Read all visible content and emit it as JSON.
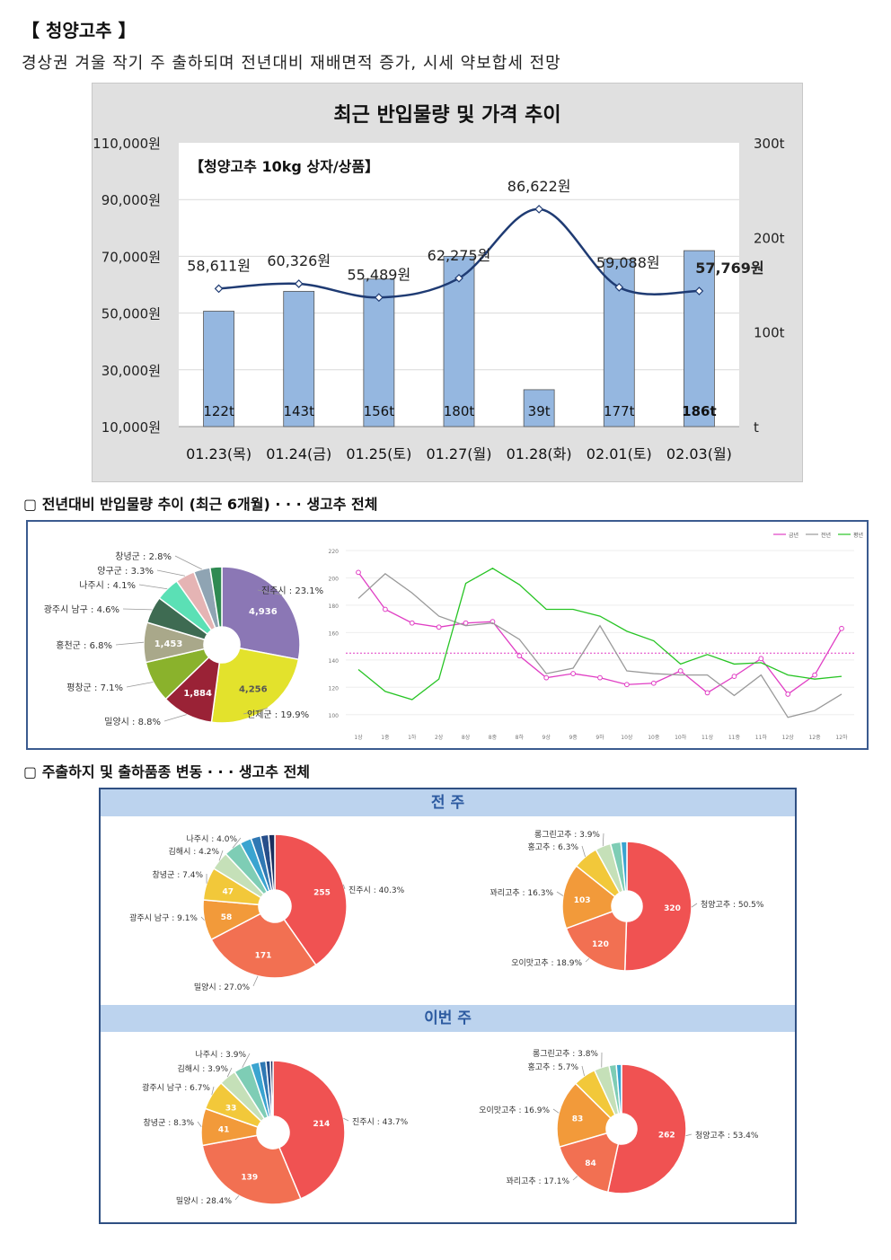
{
  "header": {
    "title": "【 청양고추 】",
    "subtitle": "경상권 겨울 작기 주 출하되며 전년대비 재배면적 증가, 시세 약보합세 전망"
  },
  "section2_title": "▢ 전년대비 반입물량 추이 (최근 6개월) · · · 생고추 전체",
  "section3_title": "▢ 주출하지 및 출하품종 변동 · · · 생고추 전체",
  "colors": {
    "bar": "#95b7e0",
    "line": "#1f3b73",
    "accent_box": "#3b5b8f"
  },
  "chart_data": [
    {
      "type": "bar",
      "title": "최근 반입물량 및 가격 추이",
      "subtitle": "【청양고추 10kg 상자/상품】",
      "categories": [
        "01.23(목)",
        "01.24(금)",
        "01.25(토)",
        "01.27(월)",
        "01.28(화)",
        "02.01(토)",
        "02.03(월)"
      ],
      "y_left_ticks": [
        "110,000원",
        "90,000원",
        "70,000원",
        "50,000원",
        "30,000원",
        "10,000원"
      ],
      "y_left_range": [
        10000,
        110000
      ],
      "y_right_ticks": [
        "300t",
        "200t",
        "100t",
        "t"
      ],
      "y_right_range": [
        0,
        300
      ],
      "series": [
        {
          "kind": "bar",
          "axis": "right",
          "values": [
            122,
            143,
            156,
            180,
            39,
            177,
            186
          ],
          "labels": [
            "122t",
            "143t",
            "156t",
            "180t",
            "39t",
            "177t",
            "186t"
          ]
        },
        {
          "kind": "line",
          "axis": "left",
          "values": [
            58611,
            60326,
            55489,
            62275,
            86622,
            59088,
            57769
          ],
          "labels": [
            "58,611원",
            "60,326원",
            "55,489원",
            "62,275원",
            "86,622원",
            "59,088원",
            "57,769원"
          ]
        }
      ]
    },
    {
      "type": "pie",
      "slices": [
        {
          "label": "진주시 : 23.1%",
          "value": 23.1,
          "inner": "4,936",
          "color": "#8b77b5"
        },
        {
          "label": "인제군 : 19.9%",
          "value": 19.9,
          "inner": "4,256",
          "color": "#e3e22c"
        },
        {
          "label": "밀양시 : 8.8%",
          "value": 8.8,
          "inner": "1,884",
          "color": "#9a2236"
        },
        {
          "label": "평창군 : 7.1%",
          "value": 7.1,
          "inner": "",
          "color": "#8ab22c"
        },
        {
          "label": "홍천군 : 6.8%",
          "value": 6.8,
          "inner": "1,453",
          "color": "#a9a88a"
        },
        {
          "label": "광주시 남구 : 4.6%",
          "value": 4.6,
          "inner": "",
          "color": "#3e6b52"
        },
        {
          "label": "나주시 : 4.1%",
          "value": 4.1,
          "inner": "",
          "color": "#5be0b5"
        },
        {
          "label": "양구군 : 3.3%",
          "value": 3.3,
          "inner": "",
          "color": "#e5b4b4"
        },
        {
          "label": "창녕군 : 2.8%",
          "value": 2.8,
          "inner": "",
          "color": "#8fa4b3"
        },
        {
          "label": "",
          "value": 2.0,
          "inner": "",
          "color": "#2f8a52"
        }
      ]
    },
    {
      "type": "line",
      "legend": [
        "금년",
        "전년",
        "평년"
      ],
      "x": [
        "1상",
        "1중",
        "1하",
        "2상",
        "8상",
        "8중",
        "8하",
        "9상",
        "9중",
        "9하",
        "10상",
        "10중",
        "10하",
        "11상",
        "11중",
        "11하",
        "12상",
        "12중",
        "12하"
      ],
      "y_ticks": [
        "220",
        "200",
        "180",
        "160",
        "140",
        "120",
        "100"
      ],
      "ylim": [
        90,
        220
      ],
      "reference_line": 145,
      "series": [
        {
          "name": "금년",
          "color": "#e03ec4",
          "values": [
            204,
            177,
            167,
            164,
            167,
            168,
            143,
            127,
            130,
            127,
            122,
            123,
            132,
            116,
            128,
            141,
            115,
            129,
            163
          ]
        },
        {
          "name": "전년",
          "color": "#999999",
          "values": [
            185,
            203,
            189,
            172,
            165,
            167,
            155,
            130,
            134,
            165,
            132,
            130,
            129,
            129,
            114,
            129,
            98,
            103,
            115
          ]
        },
        {
          "name": "평년",
          "color": "#27c424",
          "values": [
            133,
            117,
            111,
            126,
            196,
            207,
            195,
            177,
            177,
            172,
            161,
            154,
            137,
            144,
            137,
            138,
            129,
            126,
            128
          ]
        }
      ]
    },
    {
      "type": "pie",
      "group": "전 주",
      "slices": [
        {
          "label": "진주시 : 40.3%",
          "value": 40.3,
          "inner": "255",
          "color": "#f05252"
        },
        {
          "label": "밀양시 : 27.0%",
          "value": 27.0,
          "inner": "171",
          "color": "#f27052"
        },
        {
          "label": "광주시 남구 : 9.1%",
          "value": 9.1,
          "inner": "58",
          "color": "#f29a3a"
        },
        {
          "label": "창녕군 : 7.4%",
          "value": 7.4,
          "inner": "47",
          "color": "#f2c83a"
        },
        {
          "label": "김해시 : 4.2%",
          "value": 4.2,
          "inner": "",
          "color": "#c5e0b8"
        },
        {
          "label": "나주시 : 4.0%",
          "value": 4.0,
          "inner": "",
          "color": "#7ecdb5"
        },
        {
          "label": "",
          "value": 2.6,
          "inner": "",
          "color": "#3aa4d0"
        },
        {
          "label": "",
          "value": 2.2,
          "inner": "",
          "color": "#2f78b4"
        },
        {
          "label": "",
          "value": 1.8,
          "inner": "",
          "color": "#264e8a"
        },
        {
          "label": "",
          "value": 1.4,
          "inner": "",
          "color": "#1b2f5e"
        }
      ]
    },
    {
      "type": "pie",
      "group": "전 주",
      "slices": [
        {
          "label": "청양고추 : 50.5%",
          "value": 50.5,
          "inner": "320",
          "color": "#f05252"
        },
        {
          "label": "오이맛고추 : 18.9%",
          "value": 18.9,
          "inner": "120",
          "color": "#f27052"
        },
        {
          "label": "꽈리고추 : 16.3%",
          "value": 16.3,
          "inner": "103",
          "color": "#f29a3a"
        },
        {
          "label": "홍고추 : 6.3%",
          "value": 6.3,
          "inner": "",
          "color": "#f2c83a"
        },
        {
          "label": "롱그린고추 : 3.9%",
          "value": 3.9,
          "inner": "",
          "color": "#c5e0b8"
        },
        {
          "label": "",
          "value": 2.6,
          "inner": "",
          "color": "#7ecdb5"
        },
        {
          "label": "",
          "value": 1.5,
          "inner": "",
          "color": "#3aa4d0"
        }
      ]
    },
    {
      "type": "pie",
      "group": "이번 주",
      "slices": [
        {
          "label": "진주시 : 43.7%",
          "value": 43.7,
          "inner": "214",
          "color": "#f05252"
        },
        {
          "label": "밀양시 : 28.4%",
          "value": 28.4,
          "inner": "139",
          "color": "#f27052"
        },
        {
          "label": "창녕군 : 8.3%",
          "value": 8.3,
          "inner": "41",
          "color": "#f29a3a"
        },
        {
          "label": "광주시 남구 : 6.7%",
          "value": 6.7,
          "inner": "33",
          "color": "#f2c83a"
        },
        {
          "label": "김해시 : 3.9%",
          "value": 3.9,
          "inner": "",
          "color": "#c5e0b8"
        },
        {
          "label": "나주시 : 3.9%",
          "value": 3.9,
          "inner": "",
          "color": "#7ecdb5"
        },
        {
          "label": "",
          "value": 2.0,
          "inner": "",
          "color": "#3aa4d0"
        },
        {
          "label": "",
          "value": 1.5,
          "inner": "",
          "color": "#2f78b4"
        },
        {
          "label": "",
          "value": 1.0,
          "inner": "",
          "color": "#264e8a"
        },
        {
          "label": "",
          "value": 0.6,
          "inner": "",
          "color": "#1b2f5e"
        }
      ]
    },
    {
      "type": "pie",
      "group": "이번 주",
      "slices": [
        {
          "label": "청양고추 : 53.4%",
          "value": 53.4,
          "inner": "262",
          "color": "#f05252"
        },
        {
          "label": "꽈리고추 : 17.1%",
          "value": 17.1,
          "inner": "84",
          "color": "#f27052"
        },
        {
          "label": "오이맛고추 : 16.9%",
          "value": 16.9,
          "inner": "83",
          "color": "#f29a3a"
        },
        {
          "label": "홍고추 : 5.7%",
          "value": 5.7,
          "inner": "",
          "color": "#f2c83a"
        },
        {
          "label": "롱그린고추 : 3.8%",
          "value": 3.8,
          "inner": "",
          "color": "#c5e0b8"
        },
        {
          "label": "",
          "value": 1.8,
          "inner": "",
          "color": "#7ecdb5"
        },
        {
          "label": "",
          "value": 1.3,
          "inner": "",
          "color": "#3aa4d0"
        }
      ]
    }
  ]
}
